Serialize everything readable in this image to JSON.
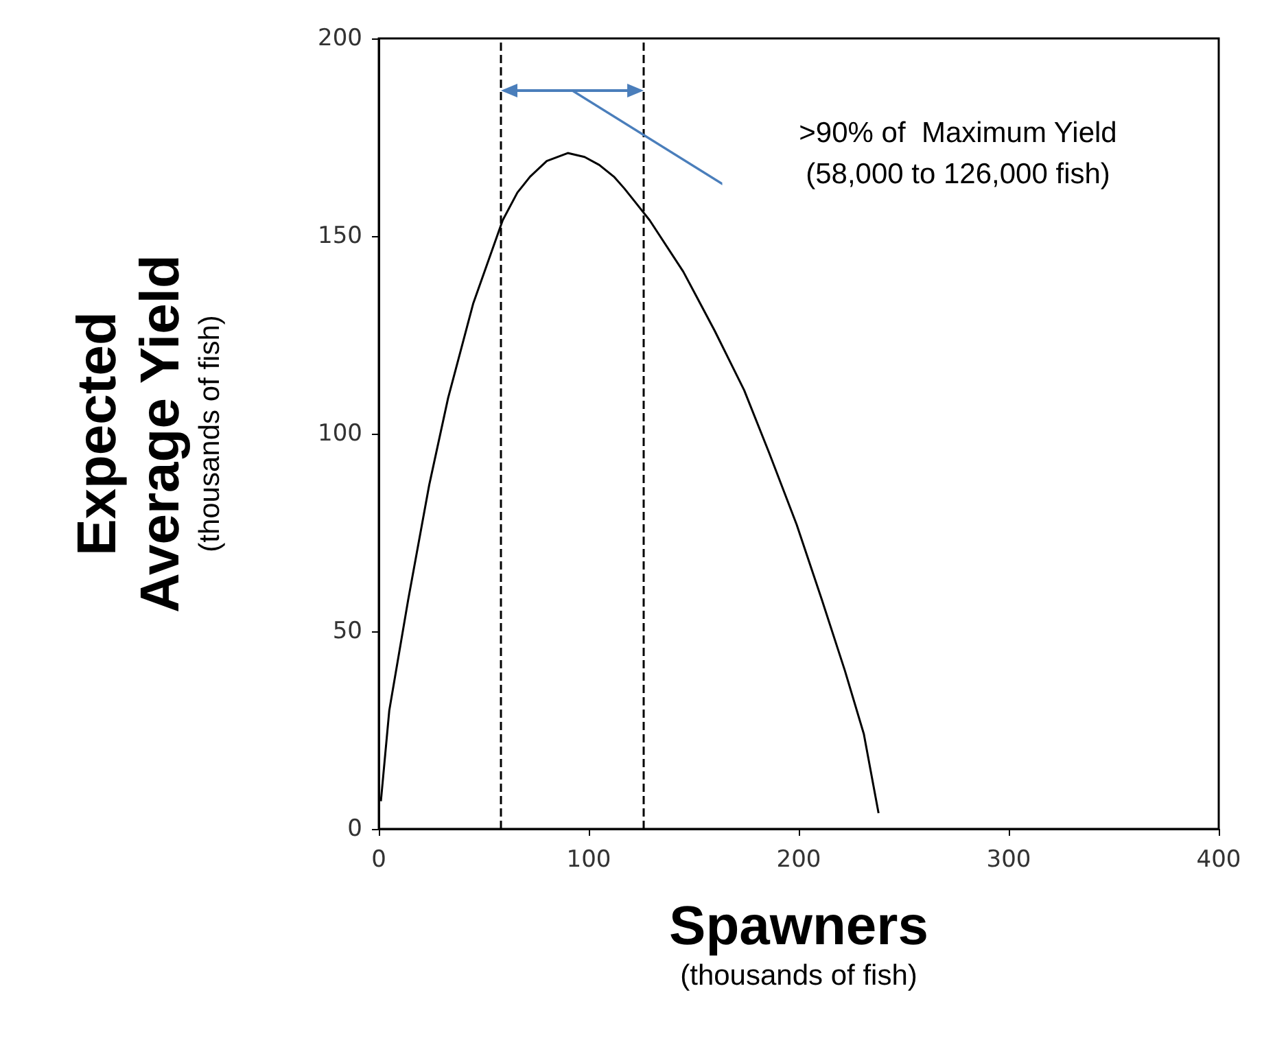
{
  "chart_data": {
    "type": "line",
    "xlabel": "Spawners\n(thousands of fish)",
    "ylabel": "Expected\nAverage Yield\n(thousands of fish)",
    "x": [
      1,
      5,
      14,
      24,
      33,
      45,
      59,
      66,
      72,
      80,
      90,
      98,
      105,
      112,
      117,
      123,
      129,
      145,
      160,
      174,
      186,
      199,
      211,
      222,
      231,
      238
    ],
    "series": [
      {
        "color": "#000000",
        "values": [
          7,
          30,
          58,
          87,
          109,
          133,
          154,
          161,
          165,
          169,
          171,
          170,
          168,
          165,
          162,
          158,
          154,
          141,
          126,
          111,
          95,
          77,
          58,
          40,
          24,
          4
        ]
      }
    ],
    "xlim": [
      0,
      400
    ],
    "xticks": [
      0,
      100,
      200,
      300,
      400
    ],
    "ylim": [
      0,
      200
    ],
    "yticks": [
      0,
      50,
      100,
      150,
      200
    ],
    "grid": false,
    "marker": "none",
    "line_style": "solid",
    "ref_lines": [
      {
        "axis": "x",
        "value": 58,
        "color": "#000000",
        "line_style": "dashed"
      },
      {
        "axis": "x",
        "value": 126,
        "color": "#000000",
        "line_style": "dashed"
      }
    ],
    "annotations": [
      ">90% of  Maximum Yield\n(58,000 to 126,000 fish)"
    ]
  }
}
